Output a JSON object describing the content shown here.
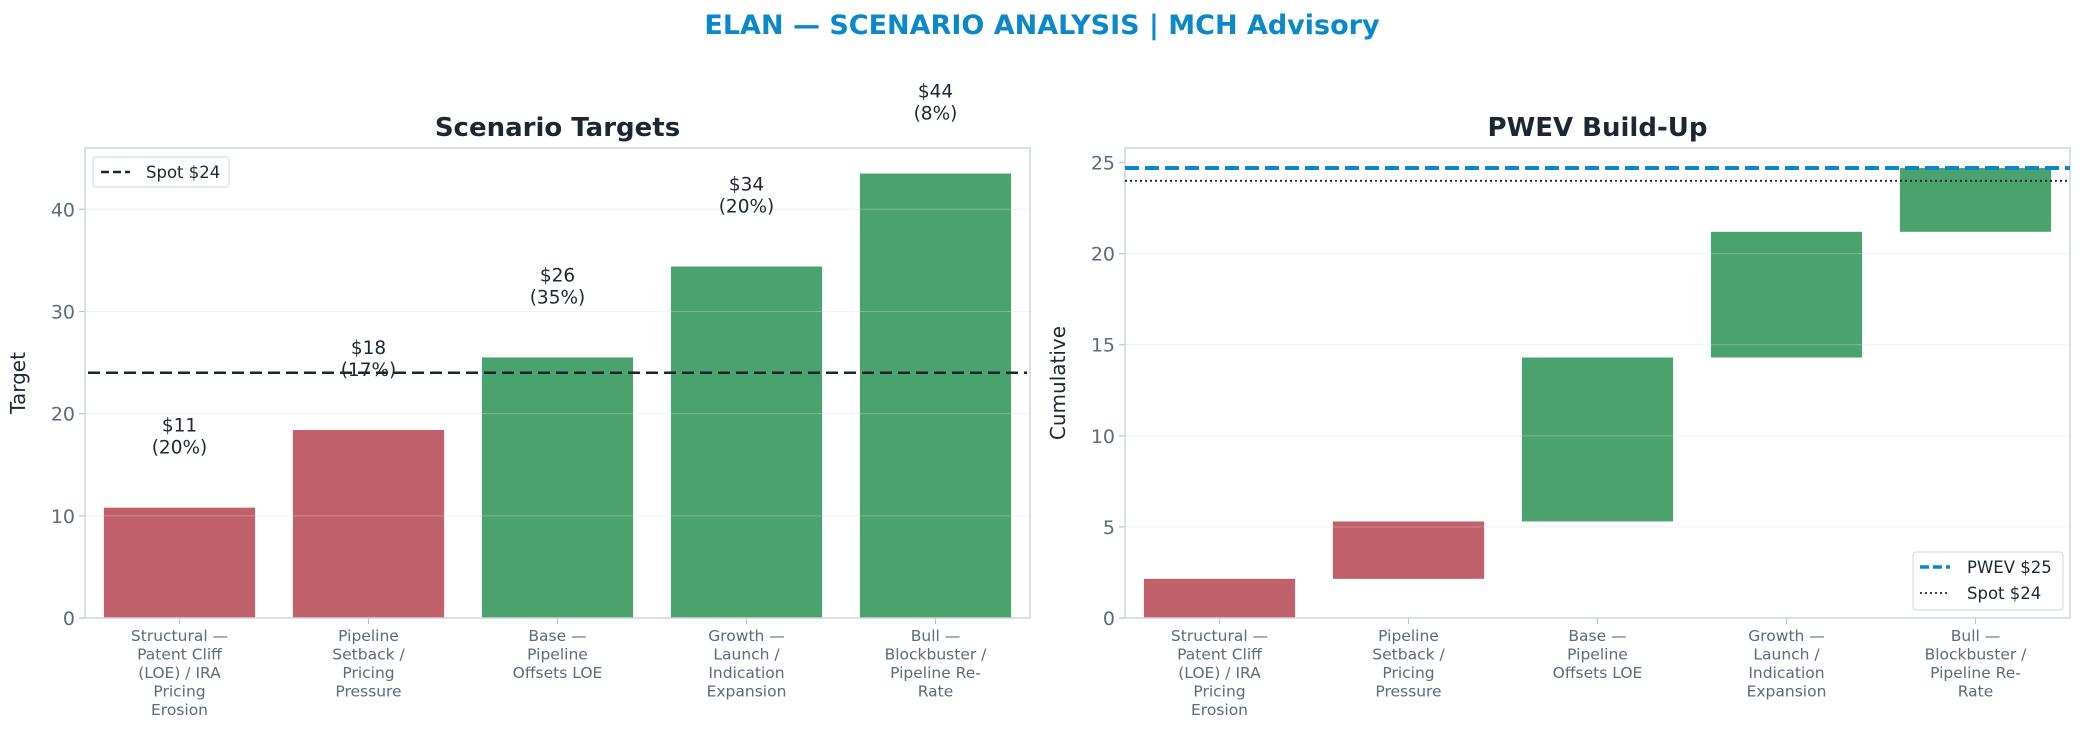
{
  "title": "ELAN — SCENARIO ANALYSIS | MCH Advisory",
  "colors": {
    "title": "#0a88c8",
    "negative": "#c0606a",
    "positive": "#4aa36c",
    "pwev": "#0a88c8",
    "spot": "#1c2733"
  },
  "chart_data": [
    {
      "type": "bar",
      "title": "Scenario Targets",
      "ylabel": "Target",
      "xlabel": "",
      "ylim": [
        0,
        46
      ],
      "yticks": [
        "0",
        "10",
        "20",
        "30",
        "40"
      ],
      "categories": [
        [
          "Structural —",
          "Patent Cliff",
          "(LOE) / IRA",
          "Pricing",
          "Erosion"
        ],
        [
          "Pipeline",
          "Setback /",
          "Pricing",
          "Pressure"
        ],
        [
          "Base —",
          "Pipeline",
          "Offsets LOE"
        ],
        [
          "Growth —",
          "Launch /",
          "Indication",
          "Expansion"
        ],
        [
          "Bull —",
          "Blockbuster /",
          "Pipeline Re-",
          "Rate"
        ]
      ],
      "values": [
        10.8,
        18.4,
        25.5,
        34.4,
        43.5
      ],
      "sentiment": [
        "negative",
        "negative",
        "positive",
        "positive",
        "positive"
      ],
      "data_labels": [
        [
          "$11",
          "(20%)"
        ],
        [
          "$18",
          "(17%)"
        ],
        [
          "$26",
          "(35%)"
        ],
        [
          "$34",
          "(20%)"
        ],
        [
          "$44",
          "(8%)"
        ]
      ],
      "reference_lines": [
        {
          "label": "Spot $24",
          "value": 24,
          "style": "dashed"
        }
      ],
      "legend": "top-left",
      "grid": true
    },
    {
      "type": "bar",
      "subtype": "waterfall",
      "title": "PWEV Build-Up",
      "ylabel": "Cumulative",
      "xlabel": "",
      "ylim": [
        0,
        25.8
      ],
      "yticks": [
        "0",
        "5",
        "10",
        "15",
        "20",
        "25"
      ],
      "categories": [
        [
          "Structural —",
          "Patent Cliff",
          "(LOE) / IRA",
          "Pricing",
          "Erosion"
        ],
        [
          "Pipeline",
          "Setback /",
          "Pricing",
          "Pressure"
        ],
        [
          "Base —",
          "Pipeline",
          "Offsets LOE"
        ],
        [
          "Growth —",
          "Launch /",
          "Indication",
          "Expansion"
        ],
        [
          "Bull —",
          "Blockbuster /",
          "Pipeline Re-",
          "Rate"
        ]
      ],
      "ranges": [
        [
          0,
          2.15
        ],
        [
          2.15,
          5.3
        ],
        [
          5.3,
          14.3
        ],
        [
          14.3,
          21.2
        ],
        [
          21.2,
          24.7
        ]
      ],
      "sentiment": [
        "negative",
        "negative",
        "positive",
        "positive",
        "positive"
      ],
      "reference_lines": [
        {
          "label": "PWEV $25",
          "value": 24.7,
          "style": "dashed"
        },
        {
          "label": "Spot $24",
          "value": 24,
          "style": "dotted"
        }
      ],
      "legend": "bottom-right",
      "grid": true
    }
  ]
}
